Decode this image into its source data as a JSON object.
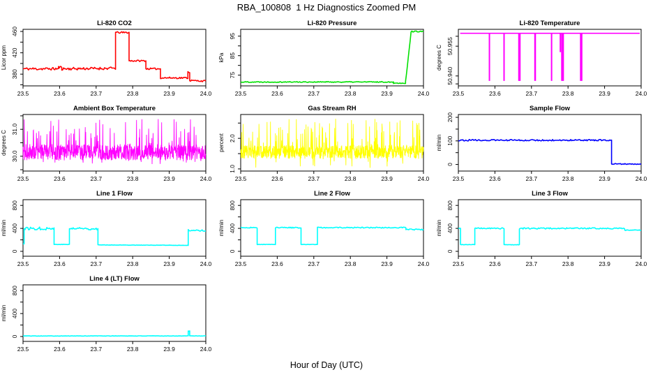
{
  "page_title": "RBA_100808  1 Hz Diagnostics Zoomed PM",
  "xlabel": "Hour of Day (UTC)",
  "axis_color": "#000000",
  "background_color": "#ffffff",
  "chart_data": [
    {
      "id": "li820-co2",
      "type": "line",
      "title": "Li-820 CO2",
      "ylabel": "Licor ppm",
      "color": "#FF0000",
      "xlim": [
        23.5,
        24.0
      ],
      "xticks": [
        "23.5",
        "23.6",
        "23.7",
        "23.8",
        "23.9",
        "24.0"
      ],
      "ylim": [
        358,
        464
      ],
      "yticks": [
        {
          "v": 380,
          "label": "380"
        },
        {
          "v": 420,
          "label": "420"
        },
        {
          "v": 460,
          "label": "460"
        }
      ],
      "yticks_minor": [
        360,
        400,
        440
      ],
      "seed": 11,
      "segments": [
        [
          23.5,
          23.597,
          390,
          390,
          2.5
        ],
        [
          23.597,
          23.606,
          393,
          393,
          2
        ],
        [
          23.606,
          23.753,
          390,
          391,
          2.5
        ],
        [
          23.753,
          23.79,
          458,
          458,
          1.5
        ],
        [
          23.79,
          23.836,
          405,
          405,
          1.5
        ],
        [
          23.836,
          23.876,
          390,
          390,
          1.5
        ],
        [
          23.876,
          23.951,
          373,
          373,
          1.5
        ],
        [
          23.951,
          23.956,
          384,
          384,
          1.5
        ],
        [
          23.956,
          24.0,
          368,
          367,
          1.5
        ]
      ]
    },
    {
      "id": "li820-pressure",
      "type": "line",
      "title": "Li-820 Pressure",
      "ylabel": "kPa",
      "color": "#00E000",
      "xlim": [
        23.5,
        24.0
      ],
      "xticks": [
        "23.5",
        "23.6",
        "23.7",
        "23.8",
        "23.9",
        "24.0"
      ],
      "ylim": [
        69.5,
        98.5
      ],
      "yticks": [
        {
          "v": 75,
          "label": "75"
        },
        {
          "v": 85,
          "label": "85"
        },
        {
          "v": 95,
          "label": "95"
        }
      ],
      "yticks_minor": [
        80,
        90
      ],
      "seed": 22,
      "segments": [
        [
          23.5,
          23.918,
          71.5,
          71.5,
          0.25
        ],
        [
          23.918,
          23.951,
          70.9,
          70.9,
          0.2
        ],
        [
          23.951,
          23.966,
          71.5,
          96.8,
          0.5
        ],
        [
          23.966,
          24.0,
          97.4,
          97.4,
          0.25
        ]
      ]
    },
    {
      "id": "li820-temperature",
      "type": "base-spikes",
      "title": "Li-820 Temperature",
      "ylabel": "degrees C",
      "color": "#FF00FF",
      "xlim": [
        23.5,
        24.0
      ],
      "xticks": [
        "23.5",
        "23.6",
        "23.7",
        "23.8",
        "23.9",
        "24.0"
      ],
      "ylim": [
        50.935,
        50.9635
      ],
      "yticks": [
        {
          "v": 50.955,
          "label": "50.955"
        },
        {
          "v": 50.94,
          "label": "50.940"
        }
      ],
      "yticks_minor": [
        50.96,
        50.936
      ],
      "seed": 33,
      "base": 50.9615,
      "base_x": [
        23.505,
        23.996
      ],
      "spikes": [
        {
          "x": 23.585,
          "low": 50.9375,
          "w": 2
        },
        {
          "x": 23.625,
          "low": 50.9375,
          "w": 2
        },
        {
          "x": 23.667,
          "low": 50.9375,
          "w": 3.5
        },
        {
          "x": 23.71,
          "low": 50.9375,
          "w": 2.5
        },
        {
          "x": 23.755,
          "low": 50.9375,
          "w": 2
        },
        {
          "x": 23.779,
          "low": 50.952,
          "w": 2
        },
        {
          "x": 23.785,
          "low": 50.9375,
          "w": 4
        },
        {
          "x": 23.836,
          "low": 50.9375,
          "w": 3.5
        }
      ]
    },
    {
      "id": "ambient-box-temperature",
      "type": "noise",
      "title": "Ambient Box Temperature",
      "ylabel": "degrees C",
      "color": "#FF00FF",
      "xlim": [
        23.5,
        24.0
      ],
      "xticks": [
        "23.5",
        "23.6",
        "23.7",
        "23.8",
        "23.9",
        "24.0"
      ],
      "ylim": [
        29.45,
        31.55
      ],
      "yticks": [
        {
          "v": 30.0,
          "label": "30.0"
        },
        {
          "v": 31.0,
          "label": "31.0"
        }
      ],
      "yticks_minor": [
        29.5,
        30.5,
        31.5
      ],
      "seed": 44,
      "noise": {
        "n": 750,
        "mean": 30.15,
        "spread": 0.3,
        "up_max": 31.4,
        "up_prob": 0.12,
        "down_min": 29.7,
        "down_prob": 0.07
      }
    },
    {
      "id": "gas-stream-rh",
      "type": "noise",
      "title": "Gas Stream RH",
      "ylabel": "percent",
      "color": "#FFFF00",
      "xlim": [
        23.5,
        24.0
      ],
      "xticks": [
        "23.5",
        "23.6",
        "23.7",
        "23.8",
        "23.9",
        "24.0"
      ],
      "ylim": [
        0.93,
        2.78
      ],
      "yticks": [
        {
          "v": 1.0,
          "label": "1.0"
        },
        {
          "v": 2.0,
          "label": "2.0"
        }
      ],
      "yticks_minor": [
        1.5,
        2.5
      ],
      "seed": 55,
      "noise": {
        "n": 750,
        "mean": 1.55,
        "spread": 0.22,
        "up_max": 2.65,
        "up_prob": 0.14,
        "down_min": 1.02,
        "down_prob": 0.05
      }
    },
    {
      "id": "sample-flow",
      "type": "line",
      "title": "Sample Flow",
      "ylabel": "ml/min",
      "color": "#0000FF",
      "xlim": [
        23.5,
        24.0
      ],
      "xticks": [
        "23.5",
        "23.6",
        "23.7",
        "23.8",
        "23.9",
        "24.0"
      ],
      "ylim": [
        -28,
        212
      ],
      "yticks": [
        {
          "v": 0,
          "label": "0"
        },
        {
          "v": 100,
          "label": "100"
        },
        {
          "v": 200,
          "label": "200"
        }
      ],
      "yticks_minor": [
        50,
        150
      ],
      "seed": 66,
      "segments": [
        [
          23.5,
          23.919,
          103,
          103,
          3
        ],
        [
          23.919,
          24.0,
          2,
          2,
          2
        ]
      ]
    },
    {
      "id": "line1-flow",
      "type": "line",
      "title": "Line 1 Flow",
      "ylabel": "ml/min",
      "color": "#00FFFF",
      "xlim": [
        23.5,
        24.0
      ],
      "xticks": [
        "23.5",
        "23.6",
        "23.7",
        "23.8",
        "23.9",
        "24.0"
      ],
      "ylim": [
        -85,
        900
      ],
      "yticks": [
        {
          "v": 0,
          "label": "0"
        },
        {
          "v": 400,
          "label": "400"
        },
        {
          "v": 800,
          "label": "800"
        }
      ],
      "yticks_minor": [
        200,
        600
      ],
      "seed": 77,
      "segments": [
        [
          23.5,
          23.503,
          130,
          130,
          0
        ],
        [
          23.503,
          23.585,
          398,
          398,
          26
        ],
        [
          23.585,
          23.627,
          120,
          120,
          3
        ],
        [
          23.627,
          23.705,
          398,
          398,
          26
        ],
        [
          23.705,
          23.952,
          112,
          104,
          3
        ],
        [
          23.952,
          24.0,
          368,
          362,
          14
        ]
      ]
    },
    {
      "id": "line2-flow",
      "type": "line",
      "title": "Line 2 Flow",
      "ylabel": "ml/min",
      "color": "#00FFFF",
      "xlim": [
        23.5,
        24.0
      ],
      "xticks": [
        "23.5",
        "23.6",
        "23.7",
        "23.8",
        "23.9",
        "24.0"
      ],
      "ylim": [
        -85,
        900
      ],
      "yticks": [
        {
          "v": 0,
          "label": "0"
        },
        {
          "v": 400,
          "label": "400"
        },
        {
          "v": 800,
          "label": "800"
        }
      ],
      "yticks_minor": [
        200,
        600
      ],
      "seed": 88,
      "segments": [
        [
          23.5,
          23.545,
          413,
          413,
          9
        ],
        [
          23.545,
          23.595,
          120,
          120,
          3
        ],
        [
          23.595,
          23.665,
          413,
          413,
          9
        ],
        [
          23.665,
          23.71,
          120,
          120,
          3
        ],
        [
          23.71,
          23.952,
          413,
          413,
          9
        ],
        [
          23.952,
          24.0,
          382,
          378,
          10
        ]
      ]
    },
    {
      "id": "line3-flow",
      "type": "line",
      "title": "Line 3 Flow",
      "ylabel": "ml/min",
      "color": "#00FFFF",
      "xlim": [
        23.5,
        24.0
      ],
      "xticks": [
        "23.5",
        "23.6",
        "23.7",
        "23.8",
        "23.9",
        "24.0"
      ],
      "ylim": [
        -85,
        900
      ],
      "yticks": [
        {
          "v": 0,
          "label": "0"
        },
        {
          "v": 400,
          "label": "400"
        },
        {
          "v": 800,
          "label": "800"
        }
      ],
      "yticks_minor": [
        200,
        600
      ],
      "seed": 99,
      "segments": [
        [
          23.5,
          23.506,
          400,
          400,
          5
        ],
        [
          23.506,
          23.545,
          118,
          118,
          4
        ],
        [
          23.545,
          23.625,
          400,
          400,
          11
        ],
        [
          23.625,
          23.667,
          115,
          115,
          4
        ],
        [
          23.667,
          23.955,
          400,
          400,
          11
        ],
        [
          23.955,
          24.0,
          370,
          368,
          8
        ]
      ]
    },
    {
      "id": "line4-lt-flow",
      "type": "line",
      "title": "Line 4 (LT) Flow",
      "ylabel": "ml/min",
      "color": "#00FFFF",
      "xlim": [
        23.5,
        24.0
      ],
      "xticks": [
        "23.5",
        "23.6",
        "23.7",
        "23.8",
        "23.9",
        "24.0"
      ],
      "ylim": [
        -85,
        900
      ],
      "yticks": [
        {
          "v": 0,
          "label": "0"
        },
        {
          "v": 400,
          "label": "400"
        },
        {
          "v": 800,
          "label": "800"
        }
      ],
      "yticks_minor": [
        200,
        600
      ],
      "seed": 101,
      "segments": [
        [
          23.5,
          23.952,
          10,
          10,
          3
        ],
        [
          23.952,
          23.956,
          95,
          95,
          3
        ],
        [
          23.956,
          24.0,
          10,
          10,
          3
        ]
      ]
    }
  ]
}
